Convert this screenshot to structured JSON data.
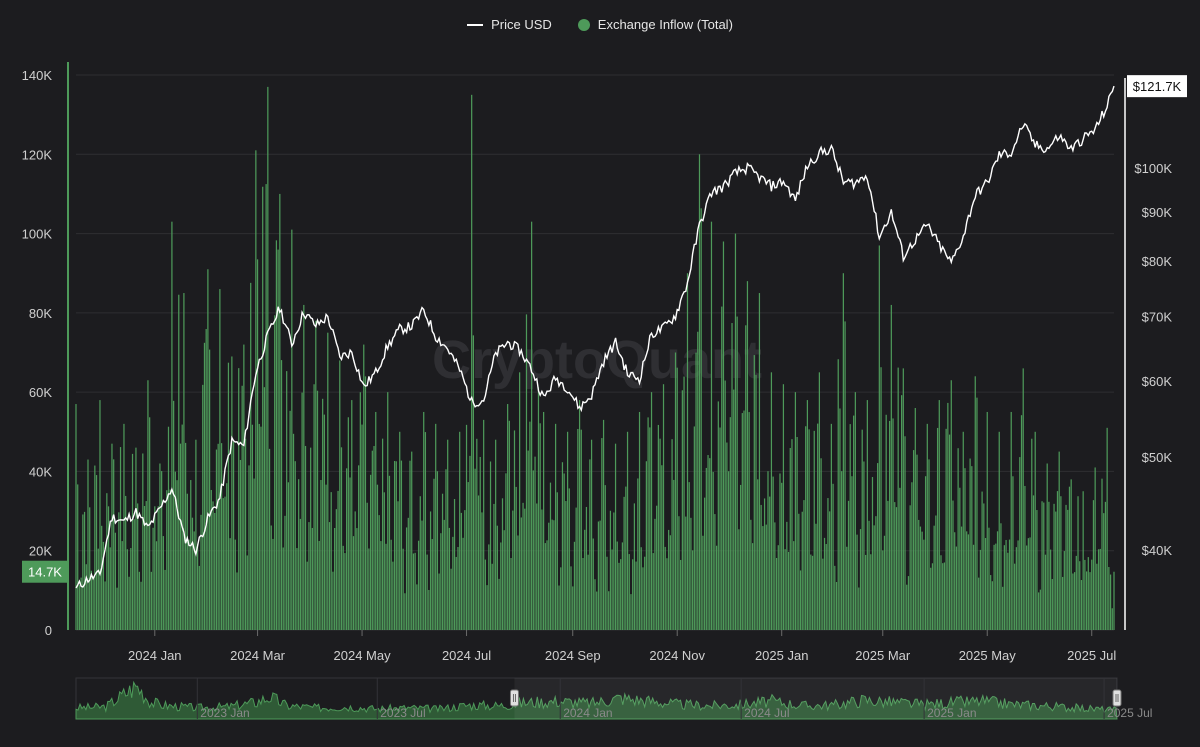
{
  "legend": {
    "price_label": "Price USD",
    "inflow_label": "Exchange Inflow (Total)"
  },
  "watermark": "CryptoQuant",
  "colors": {
    "background": "#1c1c1f",
    "bar": "#4e9a5a",
    "price_line": "#ffffff",
    "grid": "#2e2e32"
  },
  "chart_data": {
    "type": "bar",
    "left_axis": {
      "ticks": [
        "0",
        "20K",
        "40K",
        "60K",
        "80K",
        "100K",
        "120K",
        "140K"
      ],
      "tick_values": [
        0,
        20000,
        40000,
        60000,
        80000,
        100000,
        120000,
        140000
      ],
      "range": [
        0,
        140000
      ]
    },
    "right_axis": {
      "scale": "log",
      "ticks": [
        "$40K",
        "$50K",
        "$60K",
        "$70K",
        "$80K",
        "$90K",
        "$100K"
      ],
      "tick_values": [
        40000,
        50000,
        60000,
        70000,
        80000,
        90000,
        100000
      ],
      "range": [
        33000,
        125000
      ]
    },
    "x_ticks": [
      "2024 Jan",
      "2024 Mar",
      "2024 May",
      "2024 Jul",
      "2024 Sep",
      "2024 Nov",
      "2025 Jan",
      "2025 Mar",
      "2025 May",
      "2025 Jul"
    ],
    "x_range": [
      "2023-11-16",
      "2025-07-14"
    ],
    "last_inflow_label": "14.7K",
    "last_price_label": "$121.7K",
    "series": [
      {
        "name": "Exchange Inflow (Total)",
        "kind": "bar",
        "points": [
          [
            "2023-11-16",
            57000
          ],
          [
            "2023-11-23",
            43000
          ],
          [
            "2023-11-30",
            58000
          ],
          [
            "2023-12-07",
            47000
          ],
          [
            "2023-12-14",
            52000
          ],
          [
            "2023-12-21",
            46000
          ],
          [
            "2023-12-28",
            63000
          ],
          [
            "2024-01-04",
            42000
          ],
          [
            "2024-01-11",
            103000
          ],
          [
            "2024-01-18",
            85000
          ],
          [
            "2024-01-25",
            48000
          ],
          [
            "2024-02-01",
            91000
          ],
          [
            "2024-02-08",
            86000
          ],
          [
            "2024-02-15",
            69000
          ],
          [
            "2024-02-22",
            72000
          ],
          [
            "2024-02-29",
            121000
          ],
          [
            "2024-03-07",
            137000
          ],
          [
            "2024-03-14",
            110000
          ],
          [
            "2024-03-21",
            101000
          ],
          [
            "2024-03-28",
            82000
          ],
          [
            "2024-04-04",
            78000
          ],
          [
            "2024-04-11",
            75000
          ],
          [
            "2024-04-18",
            68000
          ],
          [
            "2024-04-25",
            58000
          ],
          [
            "2024-05-02",
            72000
          ],
          [
            "2024-05-09",
            55000
          ],
          [
            "2024-05-16",
            60000
          ],
          [
            "2024-05-23",
            50000
          ],
          [
            "2024-05-30",
            45000
          ],
          [
            "2024-06-06",
            55000
          ],
          [
            "2024-06-13",
            52000
          ],
          [
            "2024-06-20",
            48000
          ],
          [
            "2024-06-27",
            50000
          ],
          [
            "2024-07-04",
            135000
          ],
          [
            "2024-07-11",
            53000
          ],
          [
            "2024-07-18",
            48000
          ],
          [
            "2024-07-25",
            57000
          ],
          [
            "2024-08-01",
            65000
          ],
          [
            "2024-08-08",
            103000
          ],
          [
            "2024-08-15",
            55000
          ],
          [
            "2024-08-22",
            52000
          ],
          [
            "2024-08-29",
            50000
          ],
          [
            "2024-09-05",
            58000
          ],
          [
            "2024-09-12",
            48000
          ],
          [
            "2024-09-19",
            53000
          ],
          [
            "2024-09-26",
            47000
          ],
          [
            "2024-10-03",
            50000
          ],
          [
            "2024-10-10",
            55000
          ],
          [
            "2024-10-17",
            60000
          ],
          [
            "2024-10-24",
            62000
          ],
          [
            "2024-10-31",
            70000
          ],
          [
            "2024-11-07",
            90000
          ],
          [
            "2024-11-14",
            120000
          ],
          [
            "2024-11-21",
            103000
          ],
          [
            "2024-11-28",
            98000
          ],
          [
            "2024-12-05",
            100000
          ],
          [
            "2024-12-12",
            88000
          ],
          [
            "2024-12-19",
            85000
          ],
          [
            "2024-12-26",
            65000
          ],
          [
            "2025-01-02",
            62000
          ],
          [
            "2025-01-09",
            60000
          ],
          [
            "2025-01-16",
            58000
          ],
          [
            "2025-01-23",
            65000
          ],
          [
            "2025-01-30",
            52000
          ],
          [
            "2025-02-06",
            90000
          ],
          [
            "2025-02-13",
            60000
          ],
          [
            "2025-02-20",
            58000
          ],
          [
            "2025-02-27",
            97000
          ],
          [
            "2025-03-06",
            82000
          ],
          [
            "2025-03-13",
            66000
          ],
          [
            "2025-03-20",
            56000
          ],
          [
            "2025-03-27",
            52000
          ],
          [
            "2025-04-03",
            58000
          ],
          [
            "2025-04-10",
            63000
          ],
          [
            "2025-04-17",
            50000
          ],
          [
            "2025-04-24",
            64000
          ],
          [
            "2025-05-01",
            55000
          ],
          [
            "2025-05-08",
            50000
          ],
          [
            "2025-05-15",
            55000
          ],
          [
            "2025-05-22",
            66000
          ],
          [
            "2025-05-29",
            50000
          ],
          [
            "2025-06-05",
            42000
          ],
          [
            "2025-06-12",
            45000
          ],
          [
            "2025-06-19",
            38000
          ],
          [
            "2025-06-26",
            35000
          ],
          [
            "2025-07-03",
            41000
          ],
          [
            "2025-07-10",
            51000
          ],
          [
            "2025-07-14",
            14700
          ]
        ]
      },
      {
        "name": "Price USD",
        "kind": "line",
        "points": [
          [
            "2023-11-16",
            36500
          ],
          [
            "2023-11-23",
            37300
          ],
          [
            "2023-11-30",
            37700
          ],
          [
            "2023-12-07",
            43300
          ],
          [
            "2023-12-14",
            42800
          ],
          [
            "2023-12-21",
            43800
          ],
          [
            "2023-12-28",
            42100
          ],
          [
            "2024-01-04",
            44100
          ],
          [
            "2024-01-11",
            46400
          ],
          [
            "2024-01-18",
            41300
          ],
          [
            "2024-01-25",
            40000
          ],
          [
            "2024-02-01",
            43100
          ],
          [
            "2024-02-08",
            45300
          ],
          [
            "2024-02-15",
            51900
          ],
          [
            "2024-02-22",
            51300
          ],
          [
            "2024-02-29",
            61200
          ],
          [
            "2024-03-07",
            66900
          ],
          [
            "2024-03-14",
            71500
          ],
          [
            "2024-03-21",
            65500
          ],
          [
            "2024-03-28",
            70800
          ],
          [
            "2024-04-04",
            68500
          ],
          [
            "2024-04-11",
            70000
          ],
          [
            "2024-04-18",
            63500
          ],
          [
            "2024-04-25",
            64300
          ],
          [
            "2024-05-02",
            59100
          ],
          [
            "2024-05-09",
            61200
          ],
          [
            "2024-05-16",
            65200
          ],
          [
            "2024-05-23",
            67900
          ],
          [
            "2024-05-30",
            68400
          ],
          [
            "2024-06-06",
            71100
          ],
          [
            "2024-06-13",
            66800
          ],
          [
            "2024-06-20",
            64800
          ],
          [
            "2024-06-27",
            61600
          ],
          [
            "2024-07-04",
            57000
          ],
          [
            "2024-07-11",
            57300
          ],
          [
            "2024-07-18",
            64000
          ],
          [
            "2024-07-25",
            65800
          ],
          [
            "2024-08-01",
            64600
          ],
          [
            "2024-08-08",
            61700
          ],
          [
            "2024-08-15",
            57500
          ],
          [
            "2024-08-22",
            60400
          ],
          [
            "2024-08-29",
            59000
          ],
          [
            "2024-09-05",
            56200
          ],
          [
            "2024-09-12",
            58000
          ],
          [
            "2024-09-19",
            62900
          ],
          [
            "2024-09-26",
            65800
          ],
          [
            "2024-10-03",
            61000
          ],
          [
            "2024-10-10",
            60300
          ],
          [
            "2024-10-17",
            67100
          ],
          [
            "2024-10-24",
            68100
          ],
          [
            "2024-10-31",
            70200
          ],
          [
            "2024-11-07",
            75900
          ],
          [
            "2024-11-14",
            87100
          ],
          [
            "2024-11-21",
            94300
          ],
          [
            "2024-11-28",
            95600
          ],
          [
            "2024-12-05",
            98800
          ],
          [
            "2024-12-12",
            100000
          ],
          [
            "2024-12-19",
            97800
          ],
          [
            "2024-12-26",
            95700
          ],
          [
            "2025-01-02",
            96900
          ],
          [
            "2025-01-09",
            92500
          ],
          [
            "2025-01-16",
            100500
          ],
          [
            "2025-01-23",
            103700
          ],
          [
            "2025-01-30",
            104700
          ],
          [
            "2025-02-06",
            96600
          ],
          [
            "2025-02-13",
            96500
          ],
          [
            "2025-02-20",
            98300
          ],
          [
            "2025-02-27",
            84700
          ],
          [
            "2025-03-06",
            89900
          ],
          [
            "2025-03-13",
            80900
          ],
          [
            "2025-03-20",
            84200
          ],
          [
            "2025-03-27",
            87200
          ],
          [
            "2025-04-03",
            83100
          ],
          [
            "2025-04-10",
            79600
          ],
          [
            "2025-04-17",
            84900
          ],
          [
            "2025-04-24",
            93700
          ],
          [
            "2025-05-01",
            96500
          ],
          [
            "2025-05-08",
            103200
          ],
          [
            "2025-05-15",
            103700
          ],
          [
            "2025-05-22",
            111000
          ],
          [
            "2025-05-29",
            105600
          ],
          [
            "2025-06-05",
            104700
          ],
          [
            "2025-06-12",
            108000
          ],
          [
            "2025-06-19",
            104600
          ],
          [
            "2025-06-26",
            107300
          ],
          [
            "2025-07-03",
            109600
          ],
          [
            "2025-07-10",
            116000
          ],
          [
            "2025-07-14",
            121700
          ]
        ]
      }
    ],
    "navigator": {
      "labels": [
        "2023 Jan",
        "2023 Jul",
        "2024 Jan",
        "2024 Jul",
        "2025 Jan",
        "2025 Jul"
      ],
      "range": [
        "2022-09-01",
        "2025-07-14"
      ],
      "selected": [
        "2023-11-16",
        "2025-07-14"
      ],
      "points": [
        [
          "2022-09-01",
          20000
        ],
        [
          "2022-10-01",
          22000
        ],
        [
          "2022-11-01",
          60000
        ],
        [
          "2022-11-15",
          30000
        ],
        [
          "2022-12-01",
          24000
        ],
        [
          "2023-01-01",
          20000
        ],
        [
          "2023-02-01",
          22000
        ],
        [
          "2023-03-01",
          30000
        ],
        [
          "2023-03-15",
          40000
        ],
        [
          "2023-04-01",
          24000
        ],
        [
          "2023-05-01",
          20000
        ],
        [
          "2023-06-01",
          22000
        ],
        [
          "2023-07-01",
          18000
        ],
        [
          "2023-08-01",
          20000
        ],
        [
          "2023-09-01",
          18000
        ],
        [
          "2023-10-01",
          25000
        ],
        [
          "2023-11-01",
          24000
        ],
        [
          "2023-12-01",
          30000
        ],
        [
          "2024-01-01",
          32000
        ],
        [
          "2024-02-01",
          28000
        ],
        [
          "2024-03-01",
          38000
        ],
        [
          "2024-04-01",
          32000
        ],
        [
          "2024-05-01",
          26000
        ],
        [
          "2024-06-01",
          24000
        ],
        [
          "2024-07-01",
          26000
        ],
        [
          "2024-08-01",
          32000
        ],
        [
          "2024-09-01",
          24000
        ],
        [
          "2024-10-01",
          25000
        ],
        [
          "2024-11-01",
          34000
        ],
        [
          "2024-12-01",
          30000
        ],
        [
          "2025-01-01",
          26000
        ],
        [
          "2025-02-01",
          30000
        ],
        [
          "2025-03-01",
          32000
        ],
        [
          "2025-04-01",
          26000
        ],
        [
          "2025-05-01",
          24000
        ],
        [
          "2025-06-01",
          20000
        ],
        [
          "2025-07-14",
          16000
        ]
      ]
    }
  }
}
